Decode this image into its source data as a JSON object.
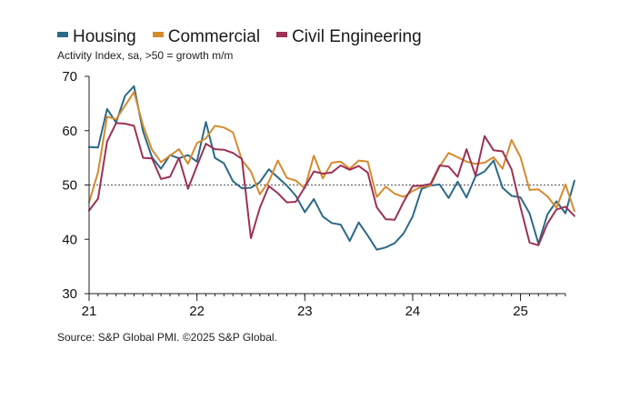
{
  "colors": {
    "housing": "#2b6a86",
    "commercial": "#d68a2e",
    "civil": "#9c3256",
    "axis": "#222222",
    "reference": "#555555"
  },
  "legend": {
    "housing": "Housing",
    "commercial": "Commercial",
    "civil": "Civil Engineering"
  },
  "subtitle": "Activity Index, sa, >50 = growth m/m",
  "source": "Source: S&P Global PMI. ©2025 S&P Global.",
  "chart_data": {
    "type": "line",
    "title": "",
    "xlabel": "",
    "ylabel": "Activity Index, sa, >50 = growth m/m",
    "ylim": [
      30,
      70
    ],
    "yticks": [
      "30",
      "40",
      "50",
      "60",
      "70"
    ],
    "xlim": [
      0,
      53
    ],
    "xticks": [
      {
        "label": "21",
        "index": 0
      },
      {
        "label": "22",
        "index": 12
      },
      {
        "label": "23",
        "index": 24
      },
      {
        "label": "24",
        "index": 36
      },
      {
        "label": "25",
        "index": 48
      }
    ],
    "reference_line": 50,
    "grid": false,
    "series": [
      {
        "name": "Housing",
        "key": "housing",
        "values": [
          57.0,
          56.9,
          64.0,
          61.5,
          66.4,
          68.2,
          59.9,
          55.1,
          53.0,
          55.5,
          54.9,
          55.5,
          54.3,
          61.6,
          55.0,
          54.0,
          50.7,
          49.4,
          49.5,
          50.5,
          52.9,
          51.4,
          49.9,
          48.0,
          45.0,
          47.4,
          44.2,
          43.0,
          42.7,
          39.7,
          43.1,
          40.7,
          38.1,
          38.5,
          39.3,
          41.1,
          44.2,
          49.3,
          49.9,
          50.1,
          47.6,
          50.6,
          47.7,
          51.6,
          52.5,
          54.5,
          49.5,
          48.0,
          47.7,
          44.8,
          39.2,
          44.6,
          47.0,
          44.8,
          50.8
        ]
      },
      {
        "name": "Commercial",
        "key": "commercial",
        "values": [
          46.8,
          52.4,
          62.6,
          62.1,
          64.6,
          67.1,
          61.0,
          56.5,
          54.2,
          55.4,
          56.6,
          53.9,
          57.7,
          58.6,
          60.9,
          60.6,
          59.7,
          54.6,
          52.5,
          48.3,
          50.6,
          54.5,
          51.3,
          50.8,
          49.4,
          55.4,
          51.2,
          54.1,
          54.3,
          53.0,
          54.5,
          54.3,
          47.8,
          49.7,
          48.4,
          47.8,
          48.9,
          49.7,
          49.9,
          53.4,
          55.9,
          55.1,
          54.3,
          53.9,
          54.1,
          55.1,
          53.0,
          58.3,
          55.1,
          49.1,
          49.2,
          47.9,
          45.8,
          50.1,
          45.2
        ]
      },
      {
        "name": "Civil Engineering",
        "key": "civil",
        "values": [
          45.3,
          47.5,
          58.0,
          61.4,
          61.3,
          60.9,
          55.0,
          54.9,
          51.1,
          51.5,
          55.0,
          49.3,
          53.5,
          57.6,
          56.6,
          56.5,
          55.9,
          54.8,
          40.2,
          45.8,
          49.8,
          48.5,
          46.8,
          46.9,
          49.6,
          52.5,
          52.1,
          52.3,
          53.6,
          52.8,
          53.5,
          52.3,
          45.9,
          43.7,
          43.6,
          46.9,
          49.8,
          49.9,
          50.2,
          53.6,
          53.4,
          51.5,
          56.6,
          51.7,
          59.0,
          56.4,
          56.2,
          52.9,
          45.9,
          39.4,
          38.9,
          42.9,
          45.5,
          46.0,
          44.3
        ]
      }
    ]
  }
}
